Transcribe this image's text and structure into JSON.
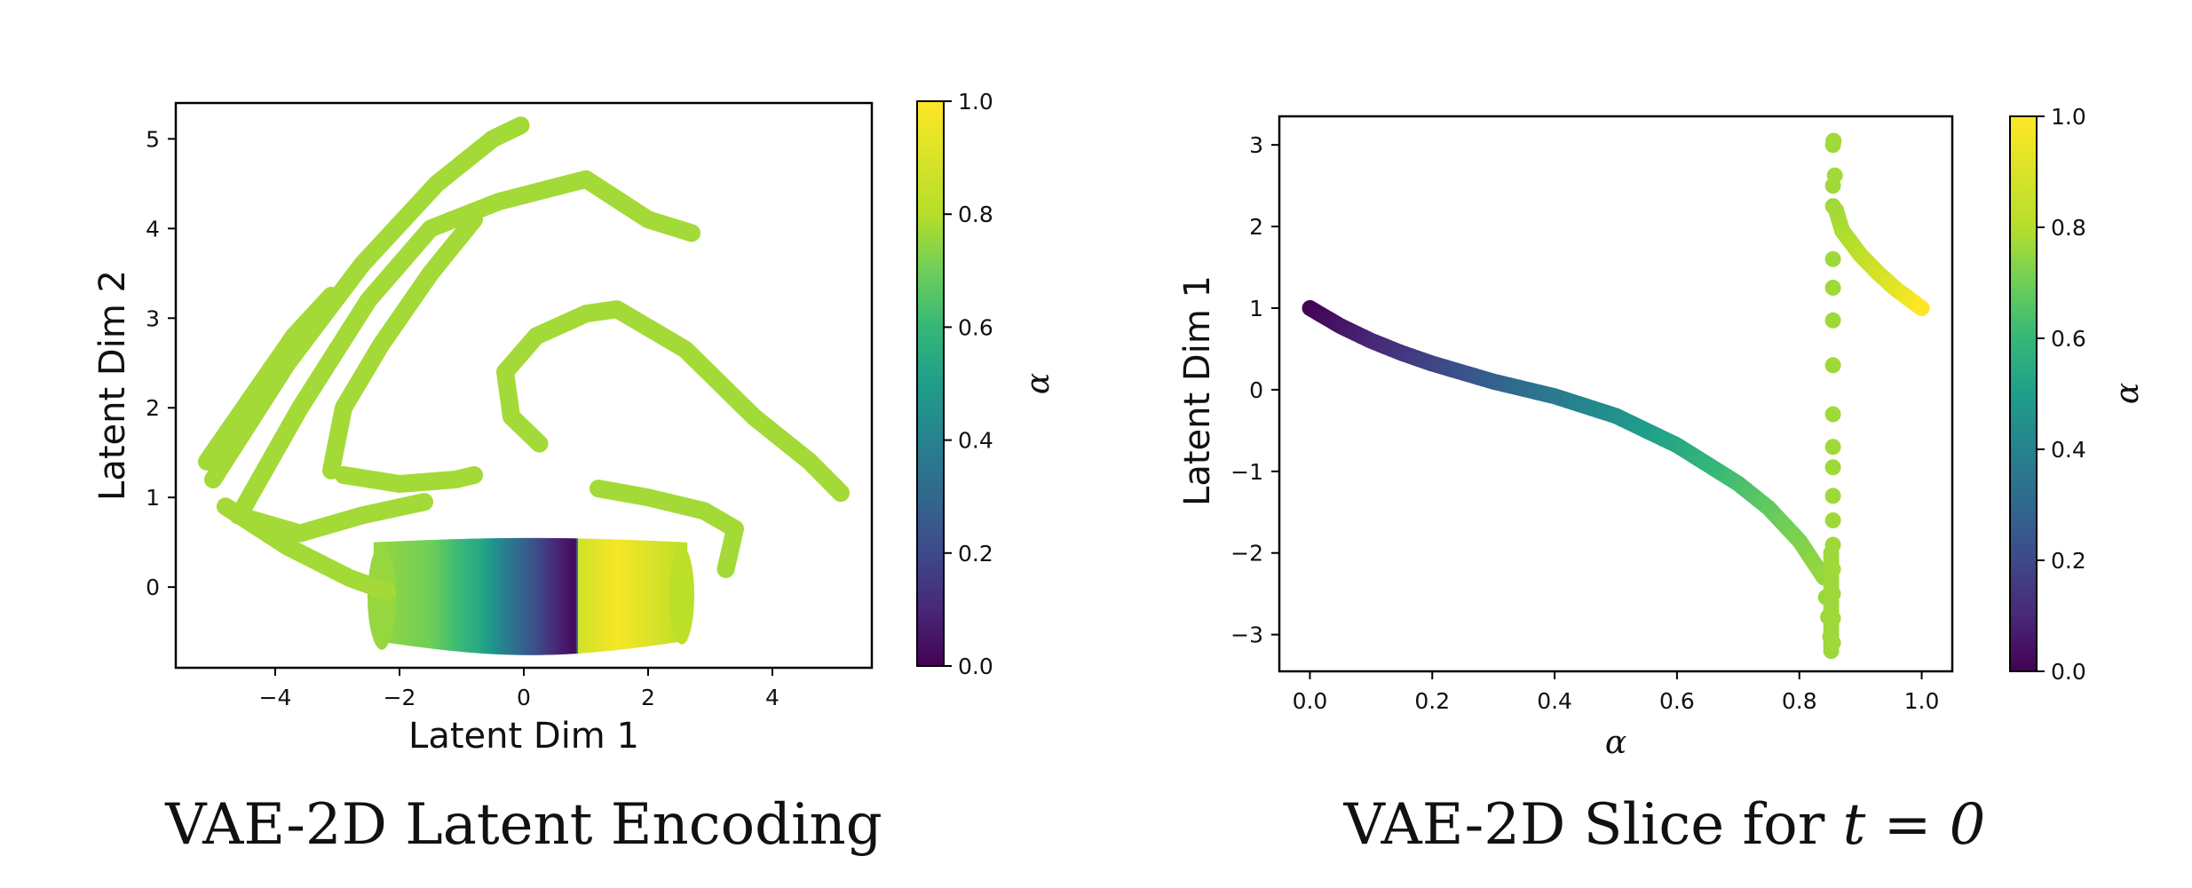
{
  "chart_data": [
    {
      "type": "scatter",
      "title": "",
      "caption": "VAE-2D Latent Encoding",
      "xlabel": "Latent Dim 1",
      "ylabel": "Latent Dim 2",
      "xlim": [
        -5.6,
        5.6
      ],
      "ylim": [
        -0.9,
        5.4
      ],
      "xticks": [
        -4,
        -2,
        0,
        2,
        4
      ],
      "yticks": [
        0,
        1,
        2,
        3,
        4,
        5
      ],
      "xtick_labels": [
        "−4",
        "−2",
        "0",
        "2",
        "4"
      ],
      "ytick_labels": [
        "0",
        "1",
        "2",
        "3",
        "4",
        "5"
      ],
      "colorbar": {
        "label": "α",
        "range": [
          0.0,
          1.0
        ],
        "ticks": [
          "0.0",
          "0.2",
          "0.4",
          "0.6",
          "0.8",
          "1.0"
        ],
        "colormap": "viridis"
      },
      "trajectories": [
        {
          "alpha": 0.86,
          "points": [
            [
              -5.1,
              1.4
            ],
            [
              -4.4,
              2.1
            ],
            [
              -3.7,
              2.8
            ],
            [
              -3.1,
              3.25
            ]
          ]
        },
        {
          "alpha": 0.86,
          "points": [
            [
              -5.0,
              1.2
            ],
            [
              -3.8,
              2.5
            ],
            [
              -2.6,
              3.6
            ],
            [
              -1.4,
              4.5
            ],
            [
              -0.5,
              5.0
            ],
            [
              -0.05,
              5.15
            ]
          ]
        },
        {
          "alpha": 0.86,
          "points": [
            [
              -4.5,
              0.9
            ],
            [
              -3.6,
              2.0
            ],
            [
              -2.5,
              3.2
            ],
            [
              -1.5,
              4.0
            ],
            [
              -0.4,
              4.3
            ],
            [
              1.0,
              4.55
            ],
            [
              2.0,
              4.1
            ],
            [
              2.7,
              3.95
            ]
          ]
        },
        {
          "alpha": 0.86,
          "points": [
            [
              -3.1,
              1.3
            ],
            [
              -2.9,
              2.0
            ],
            [
              -2.3,
              2.7
            ],
            [
              -1.5,
              3.5
            ],
            [
              -0.8,
              4.1
            ]
          ]
        },
        {
          "alpha": 0.86,
          "points": [
            [
              -2.9,
              1.25
            ],
            [
              -2.0,
              1.15
            ],
            [
              -1.1,
              1.2
            ],
            [
              -0.8,
              1.25
            ]
          ]
        },
        {
          "alpha": 0.86,
          "points": [
            [
              -4.6,
              0.8
            ],
            [
              -3.6,
              0.6
            ],
            [
              -2.6,
              0.8
            ],
            [
              -1.6,
              0.95
            ]
          ]
        },
        {
          "alpha": 0.86,
          "points": [
            [
              -4.8,
              0.9
            ],
            [
              -3.8,
              0.45
            ],
            [
              -2.8,
              0.1
            ],
            [
              -2.2,
              -0.05
            ]
          ]
        },
        {
          "alpha": 0.86,
          "points": [
            [
              0.25,
              1.6
            ],
            [
              -0.2,
              1.9
            ],
            [
              -0.3,
              2.4
            ],
            [
              0.2,
              2.8
            ],
            [
              1.0,
              3.05
            ],
            [
              1.5,
              3.1
            ],
            [
              2.6,
              2.65
            ],
            [
              3.7,
              1.9
            ],
            [
              4.6,
              1.4
            ],
            [
              5.1,
              1.05
            ]
          ]
        },
        {
          "alpha": 0.86,
          "points": [
            [
              1.2,
              1.1
            ],
            [
              2.0,
              1.0
            ],
            [
              2.9,
              0.85
            ],
            [
              3.4,
              0.65
            ],
            [
              3.25,
              0.2
            ]
          ]
        }
      ],
      "band": {
        "x_range": [
          -2.4,
          2.6
        ],
        "y_bottom": -0.6,
        "y_top": 0.5,
        "alpha_at_x": [
          [
            -2.4,
            0.84
          ],
          [
            -1.5,
            0.78
          ],
          [
            -0.7,
            0.6
          ],
          [
            -0.1,
            0.35
          ],
          [
            0.55,
            0.1
          ],
          [
            0.85,
            0.02
          ],
          [
            0.88,
            0.93
          ],
          [
            1.5,
            0.99
          ],
          [
            2.0,
            0.95
          ],
          [
            2.6,
            0.9
          ]
        ]
      }
    },
    {
      "type": "scatter",
      "title": "",
      "caption_prefix": "VAE-2D Slice for ",
      "caption_math": "t = 0",
      "xlabel": "α",
      "ylabel": "Latent Dim 1",
      "xlim": [
        -0.05,
        1.05
      ],
      "ylim": [
        -3.45,
        3.35
      ],
      "xticks": [
        0.0,
        0.2,
        0.4,
        0.6,
        0.8,
        1.0
      ],
      "yticks": [
        -3,
        -2,
        -1,
        0,
        1,
        2,
        3
      ],
      "xtick_labels": [
        "0.0",
        "0.2",
        "0.4",
        "0.6",
        "0.8",
        "1.0"
      ],
      "ytick_labels": [
        "−3",
        "−2",
        "−1",
        "0",
        "1",
        "2",
        "3"
      ],
      "colorbar": {
        "label": "α",
        "range": [
          0.0,
          1.0
        ],
        "ticks": [
          "0.0",
          "0.2",
          "0.4",
          "0.6",
          "0.8",
          "1.0"
        ],
        "colormap": "viridis"
      },
      "curve_left": {
        "alpha_range": [
          0.0,
          0.853
        ],
        "points": [
          [
            0.0,
            1.0
          ],
          [
            0.05,
            0.78
          ],
          [
            0.1,
            0.6
          ],
          [
            0.15,
            0.45
          ],
          [
            0.2,
            0.32
          ],
          [
            0.3,
            0.1
          ],
          [
            0.4,
            -0.08
          ],
          [
            0.5,
            -0.32
          ],
          [
            0.6,
            -0.68
          ],
          [
            0.7,
            -1.15
          ],
          [
            0.75,
            -1.45
          ],
          [
            0.8,
            -1.85
          ],
          [
            0.84,
            -2.3
          ],
          [
            0.853,
            -3.2
          ]
        ]
      },
      "vertical_dots": {
        "alpha": 0.855,
        "x": 0.855,
        "y": [
          3.0,
          2.5,
          2.25,
          1.6,
          1.25,
          0.85,
          0.3,
          -0.3,
          -0.7,
          -0.95,
          -1.3,
          -1.6,
          -1.9,
          -2.2,
          -2.5,
          -2.8,
          -3.1
        ]
      },
      "curve_right": {
        "alpha_range": [
          0.856,
          1.0
        ],
        "points": [
          [
            0.856,
            3.05
          ],
          [
            0.86,
            2.2
          ],
          [
            0.87,
            1.95
          ],
          [
            0.9,
            1.65
          ],
          [
            0.93,
            1.42
          ],
          [
            0.96,
            1.22
          ],
          [
            1.0,
            1.0
          ]
        ]
      }
    }
  ]
}
